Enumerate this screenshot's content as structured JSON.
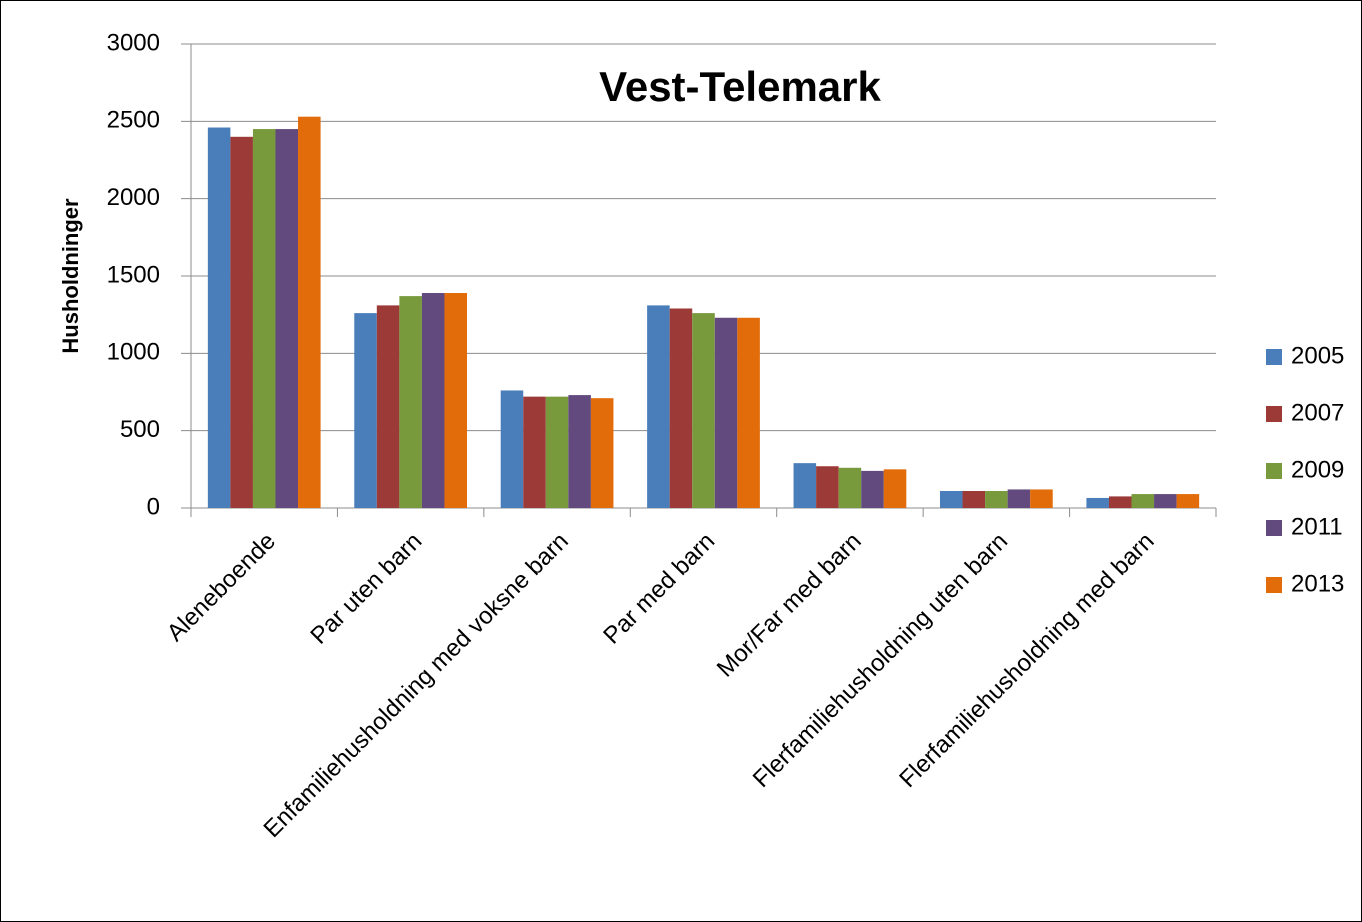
{
  "chart_data": {
    "type": "bar",
    "title": "Vest-Telemark",
    "y_label": "Husholdninger",
    "categories": [
      "Aleneboende",
      "Par uten barn",
      "Enfamiliehusholdning med voksne barn",
      "Par med barn",
      "Mor/Far med barn",
      "Flerfamiliehusholdning uten barn",
      "Flerfamiliehusholdning med barn"
    ],
    "series": [
      {
        "name": "2005",
        "color": "#4a7ebb",
        "values": [
          2460,
          1260,
          760,
          1310,
          290,
          110,
          65
        ]
      },
      {
        "name": "2007",
        "color": "#9c3a38",
        "values": [
          2400,
          1310,
          720,
          1290,
          270,
          110,
          75
        ]
      },
      {
        "name": "2009",
        "color": "#789a3c",
        "values": [
          2450,
          1370,
          720,
          1260,
          260,
          110,
          90
        ]
      },
      {
        "name": "2011",
        "color": "#624a7e",
        "values": [
          2450,
          1390,
          730,
          1230,
          240,
          120,
          90
        ]
      },
      {
        "name": "2013",
        "color": "#e36c0a",
        "values": [
          2530,
          1390,
          710,
          1230,
          250,
          120,
          90
        ]
      }
    ],
    "ylim": [
      0,
      3000
    ],
    "yticks": [
      0,
      500,
      1000,
      1500,
      2000,
      2500,
      3000
    ],
    "grid": true,
    "legend": "right"
  }
}
